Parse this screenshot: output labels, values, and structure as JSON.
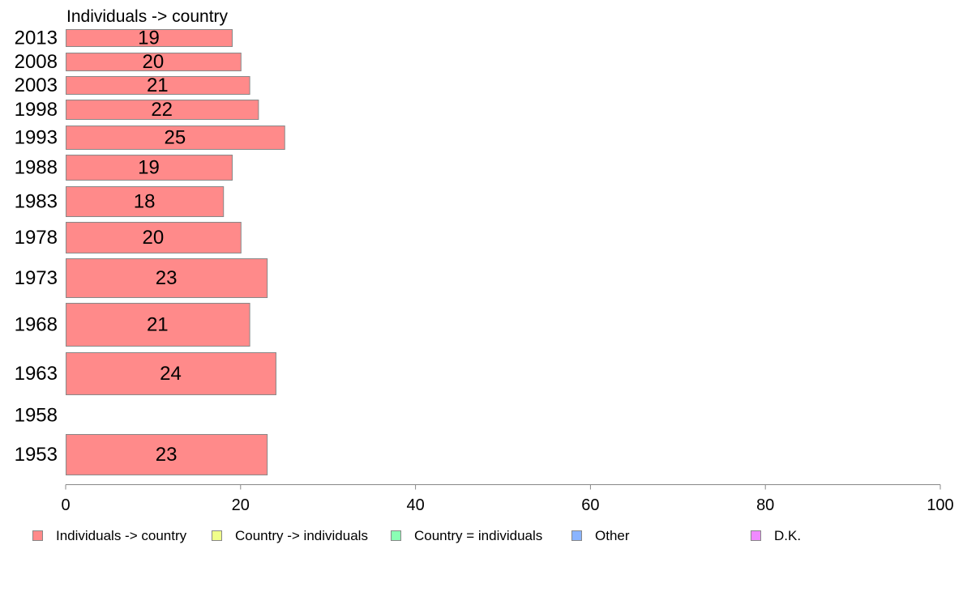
{
  "chart_data": {
    "type": "bar",
    "orientation": "horizontal",
    "series_title": "Individuals -> country",
    "categories": [
      "2013",
      "2008",
      "2003",
      "1998",
      "1993",
      "1988",
      "1983",
      "1978",
      "1973",
      "1968",
      "1963",
      "1958",
      "1953"
    ],
    "series": [
      {
        "name": "Individuals -> country",
        "values": [
          19,
          20,
          21,
          22,
          25,
          19,
          18,
          20,
          23,
          21,
          24,
          null,
          23
        ],
        "labels": [
          "19",
          "20",
          "21",
          "22",
          "25",
          "19",
          "18",
          "20",
          "23",
          "21",
          "24",
          "",
          "23"
        ]
      }
    ],
    "xlim": [
      0,
      100
    ],
    "xticks": [
      "0",
      "20",
      "40",
      "60",
      "80",
      "100"
    ],
    "grid": false,
    "legend": {
      "placement": "bottom",
      "entries": [
        {
          "label": "Individuals -> country",
          "color": "#ff8a8a"
        },
        {
          "label": "Country -> individuals",
          "color": "#f0ff8a"
        },
        {
          "label": "Country = individuals",
          "color": "#8affb4"
        },
        {
          "label": "Other",
          "color": "#8ab4ff"
        },
        {
          "label": "D.K.",
          "color": "#f08aff"
        }
      ]
    },
    "bar_color": "#ff8a8a",
    "bar_edge_color": "#888888"
  }
}
